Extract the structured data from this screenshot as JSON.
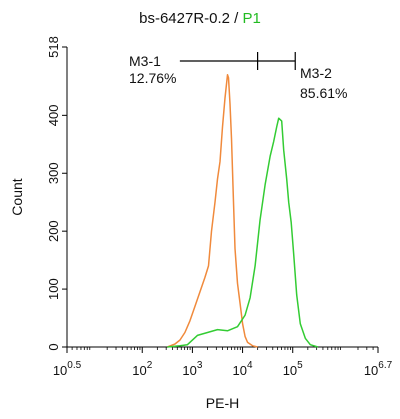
{
  "chart_data": {
    "type": "area",
    "title": {
      "main": "bs-6427R-0.2 / ",
      "gate": "P1",
      "gate_color": "#22bb22"
    },
    "xlabel": "PE-H",
    "ylabel": "Count",
    "x_scale": "log10",
    "xlim": [
      0.5,
      6.7
    ],
    "ylim": [
      0,
      518
    ],
    "x_ticks": [
      {
        "exp": 0.5,
        "base": "10",
        "sup": "0.5"
      },
      {
        "exp": 2,
        "base": "10",
        "sup": "2"
      },
      {
        "exp": 3,
        "base": "10",
        "sup": "3"
      },
      {
        "exp": 4,
        "base": "10",
        "sup": "4"
      },
      {
        "exp": 5,
        "base": "10",
        "sup": "5"
      },
      {
        "exp": 6.7,
        "base": "10",
        "sup": "6.7"
      }
    ],
    "y_ticks": [
      0,
      100,
      200,
      300,
      400,
      518
    ],
    "series": [
      {
        "color": "#f08a3c",
        "x": [
          2.5,
          2.65,
          2.75,
          2.85,
          2.95,
          3.05,
          3.15,
          3.25,
          3.32,
          3.38,
          3.45,
          3.5,
          3.55,
          3.6,
          3.65,
          3.7,
          3.72,
          3.75,
          3.78,
          3.82,
          3.85,
          3.9,
          3.95,
          4.0,
          4.05,
          4.1,
          4.2,
          4.3
        ],
        "y": [
          0,
          5,
          12,
          25,
          45,
          70,
          95,
          120,
          140,
          200,
          250,
          290,
          320,
          380,
          430,
          470,
          465,
          420,
          360,
          250,
          170,
          110,
          75,
          40,
          18,
          8,
          2,
          0
        ]
      },
      {
        "color": "#33cc33",
        "x": [
          2.5,
          2.75,
          2.9,
          3.1,
          3.3,
          3.5,
          3.7,
          3.9,
          4.05,
          4.15,
          4.25,
          4.35,
          4.45,
          4.55,
          4.62,
          4.68,
          4.72,
          4.78,
          4.82,
          4.88,
          4.92,
          4.97,
          5.02,
          5.08,
          5.15,
          5.25,
          5.35,
          5.5
        ],
        "y": [
          0,
          2,
          4,
          20,
          25,
          30,
          28,
          35,
          55,
          85,
          140,
          220,
          280,
          330,
          355,
          380,
          395,
          390,
          340,
          290,
          250,
          215,
          160,
          90,
          40,
          15,
          4,
          0
        ]
      }
    ],
    "markers": [
      {
        "label": "M3-1",
        "value": "12.76%",
        "x_start": 2.75,
        "x_end": 4.3
      },
      {
        "label": "M3-2",
        "value": "85.61%",
        "x_start": 4.3,
        "x_end": 5.05
      }
    ]
  }
}
